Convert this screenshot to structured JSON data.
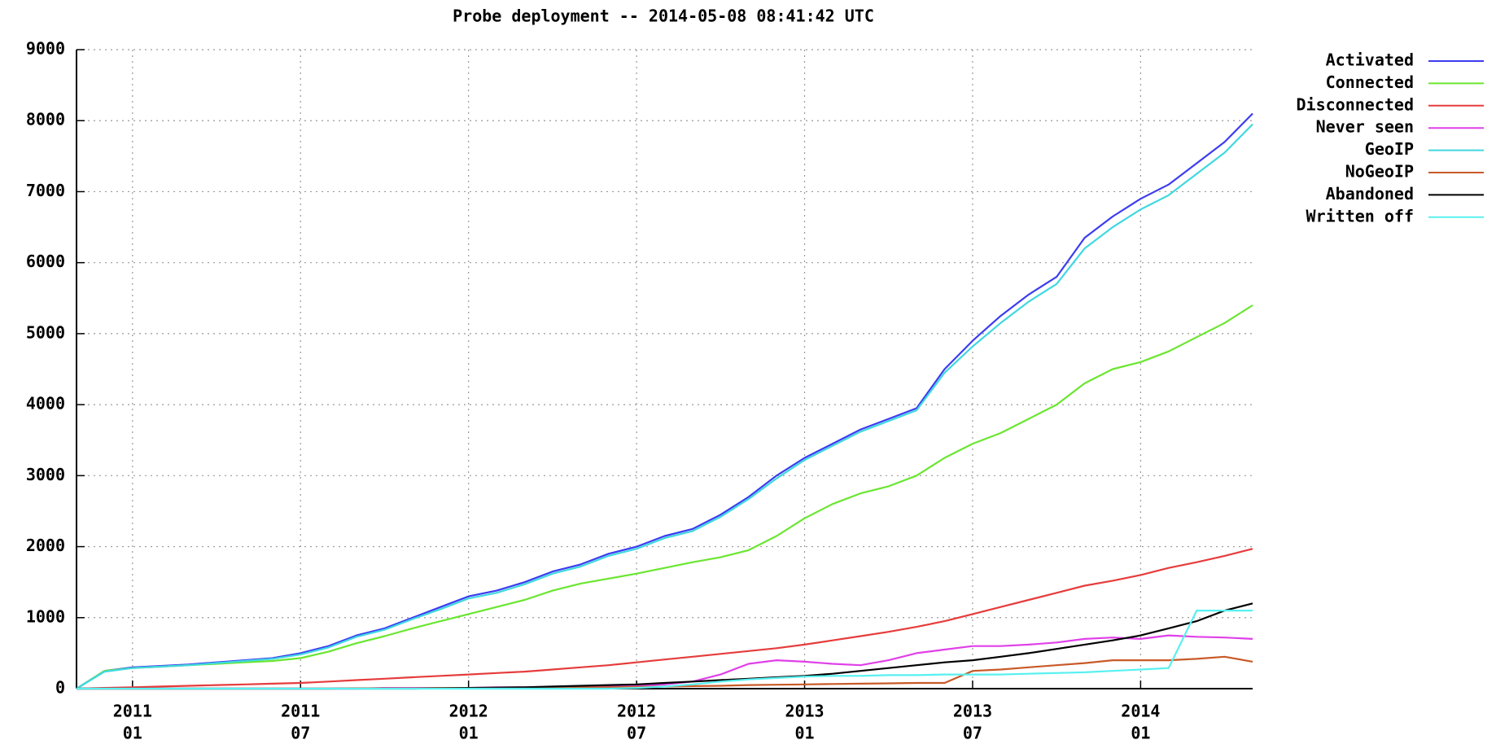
{
  "chart_data": {
    "type": "line",
    "title": "Probe deployment -- 2014-05-08 08:41:42 UTC",
    "x": [
      "2010-11",
      "2010-12",
      "2011-01",
      "2011-02",
      "2011-03",
      "2011-04",
      "2011-05",
      "2011-06",
      "2011-07",
      "2011-08",
      "2011-09",
      "2011-10",
      "2011-11",
      "2011-12",
      "2012-01",
      "2012-02",
      "2012-03",
      "2012-04",
      "2012-05",
      "2012-06",
      "2012-07",
      "2012-08",
      "2012-09",
      "2012-10",
      "2012-11",
      "2012-12",
      "2013-01",
      "2013-02",
      "2013-03",
      "2013-04",
      "2013-05",
      "2013-06",
      "2013-07",
      "2013-08",
      "2013-09",
      "2013-10",
      "2013-11",
      "2013-12",
      "2014-01",
      "2014-02",
      "2014-03",
      "2014-04",
      "2014-05"
    ],
    "series": [
      {
        "name": "Activated",
        "color": "#3c3cf0",
        "values": [
          0,
          250,
          300,
          320,
          340,
          370,
          400,
          430,
          500,
          600,
          750,
          850,
          1000,
          1150,
          1300,
          1380,
          1500,
          1650,
          1750,
          1900,
          2000,
          2150,
          2250,
          2450,
          2700,
          3000,
          3250,
          3450,
          3650,
          3800,
          3950,
          4500,
          4900,
          5250,
          5550,
          5800,
          6350,
          6650,
          6900,
          7100,
          7400,
          7700,
          8100
        ]
      },
      {
        "name": "Connected",
        "color": "#6ae630",
        "values": [
          0,
          250,
          290,
          310,
          330,
          350,
          370,
          390,
          430,
          520,
          640,
          740,
          850,
          950,
          1050,
          1150,
          1250,
          1380,
          1480,
          1550,
          1620,
          1700,
          1780,
          1850,
          1950,
          2150,
          2400,
          2600,
          2750,
          2850,
          3000,
          3250,
          3450,
          3600,
          3800,
          4000,
          4300,
          4500,
          4600,
          4750,
          4950,
          5150,
          5400
        ]
      },
      {
        "name": "Disconnected",
        "color": "#e63c3c",
        "values": [
          0,
          10,
          20,
          30,
          40,
          50,
          60,
          70,
          80,
          100,
          120,
          140,
          160,
          180,
          200,
          220,
          240,
          270,
          300,
          330,
          370,
          410,
          450,
          490,
          530,
          570,
          620,
          680,
          740,
          800,
          870,
          950,
          1050,
          1150,
          1250,
          1350,
          1450,
          1520,
          1600,
          1700,
          1780,
          1870,
          1970
        ]
      },
      {
        "name": "Never seen",
        "color": "#e040e8",
        "values": [
          0,
          0,
          0,
          0,
          0,
          0,
          0,
          0,
          0,
          0,
          0,
          10,
          10,
          10,
          10,
          20,
          20,
          20,
          30,
          30,
          40,
          60,
          100,
          200,
          350,
          400,
          380,
          350,
          330,
          400,
          500,
          550,
          600,
          600,
          620,
          650,
          700,
          720,
          700,
          750,
          730,
          720,
          700
        ]
      },
      {
        "name": "GeoIP",
        "color": "#40d8e0",
        "values": [
          0,
          240,
          290,
          310,
          330,
          360,
          390,
          420,
          480,
          580,
          730,
          830,
          980,
          1120,
          1270,
          1350,
          1470,
          1620,
          1720,
          1870,
          1970,
          2120,
          2220,
          2420,
          2670,
          2960,
          3220,
          3420,
          3620,
          3770,
          3920,
          4450,
          4820,
          5150,
          5450,
          5700,
          6200,
          6500,
          6750,
          6950,
          7250,
          7550,
          7950
        ]
      },
      {
        "name": "NoGeoIP",
        "color": "#c85a28",
        "values": [
          0,
          0,
          0,
          0,
          0,
          0,
          0,
          0,
          0,
          0,
          5,
          5,
          5,
          10,
          10,
          10,
          15,
          15,
          20,
          20,
          25,
          30,
          35,
          40,
          50,
          55,
          60,
          65,
          70,
          75,
          80,
          80,
          250,
          270,
          300,
          330,
          360,
          400,
          400,
          400,
          420,
          450,
          380
        ]
      },
      {
        "name": "Abandoned",
        "color": "#000000",
        "values": [
          0,
          0,
          0,
          0,
          0,
          0,
          0,
          0,
          0,
          0,
          0,
          0,
          0,
          5,
          10,
          15,
          20,
          30,
          40,
          50,
          60,
          80,
          100,
          120,
          140,
          160,
          180,
          210,
          250,
          290,
          330,
          370,
          400,
          450,
          500,
          560,
          620,
          680,
          750,
          850,
          950,
          1100,
          1200
        ]
      },
      {
        "name": "Written off",
        "color": "#58f0f0",
        "values": [
          0,
          0,
          0,
          0,
          0,
          0,
          0,
          0,
          0,
          0,
          0,
          0,
          0,
          0,
          0,
          0,
          0,
          0,
          0,
          0,
          10,
          30,
          60,
          100,
          130,
          150,
          170,
          180,
          180,
          190,
          190,
          200,
          200,
          200,
          210,
          220,
          230,
          250,
          270,
          290,
          1100,
          1100,
          1100
        ]
      }
    ],
    "xlim": [
      "2010-11",
      "2014-05"
    ],
    "xticks": [
      {
        "value": "2011-01",
        "label": [
          "2011",
          "01"
        ]
      },
      {
        "value": "2011-07",
        "label": [
          "2011",
          "07"
        ]
      },
      {
        "value": "2012-01",
        "label": [
          "2012",
          "01"
        ]
      },
      {
        "value": "2012-07",
        "label": [
          "2012",
          "07"
        ]
      },
      {
        "value": "2013-01",
        "label": [
          "2013",
          "01"
        ]
      },
      {
        "value": "2013-07",
        "label": [
          "2013",
          "07"
        ]
      },
      {
        "value": "2014-01",
        "label": [
          "2014",
          "01"
        ]
      }
    ],
    "ylim": [
      0,
      9000
    ],
    "yticks": [
      0,
      1000,
      2000,
      3000,
      4000,
      5000,
      6000,
      7000,
      8000,
      9000
    ],
    "grid": true,
    "legend": "right"
  }
}
